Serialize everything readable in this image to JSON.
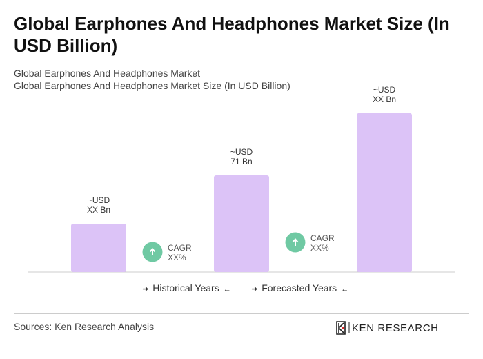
{
  "title": "Global Earphones And Headphones Market Size (In USD Billion)",
  "subtitle1": "Global Earphones And Headphones Market",
  "subtitle2": "Global Earphones And Headphones Market Size (In USD Billion)",
  "chart_data": {
    "type": "bar",
    "values": [
      35.5,
      71,
      116.7
    ],
    "data_labels": [
      [
        "~USD",
        "XX Bn"
      ],
      [
        "~USD",
        "71 Bn"
      ],
      [
        "~USD",
        "XX Bn"
      ]
    ],
    "bar_color": "#dcc3f7",
    "cagr": [
      {
        "label": "CAGR",
        "value": "XX%"
      },
      {
        "label": "CAGR",
        "value": "XX%"
      }
    ],
    "cagr_color": "#6fc9a3",
    "ylim": [
      0,
      125
    ],
    "grid": false
  },
  "legend": {
    "historical": "Historical Years",
    "forecasted": "Forecasted Years",
    "arrow_right": "➜",
    "arrow_left": "🡐"
  },
  "source": "Sources: Ken Research Analysis",
  "logo_text": "KEN RESEARCH"
}
